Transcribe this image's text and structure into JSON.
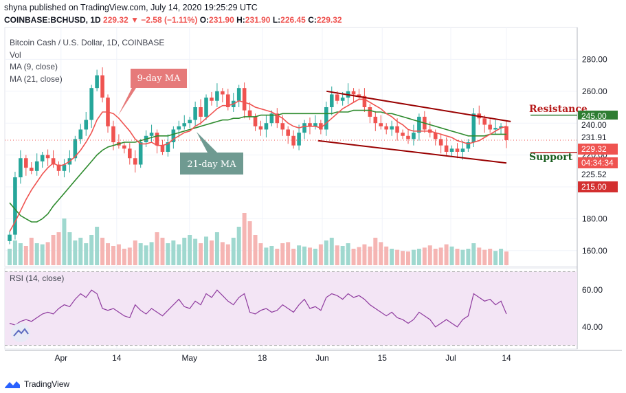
{
  "header": {
    "published": "shyna published on TradingView.com, July 14, 2020 19:25:29 UTC",
    "symbol": "COINBASE:BCHUSD, 1D",
    "last": "229.32",
    "change": "▼ −2.58 (−1.11%)",
    "open_label": "O:",
    "open": "231.90",
    "high_label": "H:",
    "high": "231.90",
    "low_label": "L:",
    "low": "226.45",
    "close_label": "C:",
    "close": "229.32"
  },
  "legend": {
    "title": "Bitcoin Cash / U.S. Dollar, 1D, COINBASE",
    "vol": "Vol",
    "ma9": "MA (9, close)",
    "ma21": "MA (21, close)"
  },
  "footer": {
    "brand": "TradingView",
    "logo_icon": "tradingview-logo-icon"
  },
  "colors": {
    "up": "#26a69a",
    "down": "#ef5350",
    "ma9": "#ef5350",
    "ma21": "#2e8b2e",
    "channel": "#990000",
    "rsi": "#8e3a9e"
  },
  "chart_data": [
    {
      "type": "candlestick",
      "title": "Bitcoin Cash / U.S. Dollar, 1D, COINBASE",
      "ylim": [
        150,
        300
      ],
      "yticks": [
        160,
        180,
        200,
        220,
        240,
        260,
        280
      ],
      "ytick_labels": [
        "160.00",
        "180.00",
        "200.00",
        "220.00",
        "240.00",
        "260.00",
        "280.00"
      ],
      "xticks": [
        {
          "x": "2020-04-01",
          "label": "Apr"
        },
        {
          "x": "2020-04-14",
          "label": "14"
        },
        {
          "x": "2020-05-01",
          "label": "May"
        },
        {
          "x": "2020-05-18",
          "label": "18"
        },
        {
          "x": "2020-06-01",
          "label": "Jun"
        },
        {
          "x": "2020-06-15",
          "label": "15"
        },
        {
          "x": "2020-07-01",
          "label": "Jul"
        },
        {
          "x": "2020-07-14",
          "label": "14"
        }
      ],
      "x_start": "2020-03-20",
      "x_end": "2020-07-14",
      "close": [
        170,
        206,
        218,
        212,
        210,
        216,
        220,
        218,
        214,
        210,
        214,
        218,
        230,
        236,
        242,
        262,
        270,
        256,
        238,
        228,
        226,
        224,
        218,
        214,
        228,
        232,
        234,
        226,
        222,
        228,
        236,
        238,
        240,
        242,
        250,
        244,
        256,
        254,
        260,
        258,
        250,
        254,
        262,
        248,
        244,
        238,
        236,
        240,
        246,
        240,
        236,
        232,
        226,
        234,
        240,
        238,
        240,
        236,
        250,
        258,
        254,
        256,
        260,
        258,
        257,
        250,
        244,
        240,
        238,
        236,
        238,
        234,
        232,
        230,
        234,
        244,
        236,
        234,
        230,
        226,
        222,
        224,
        222,
        224,
        228,
        246,
        243,
        239,
        236,
        237,
        238,
        229.32
      ],
      "ma9": [
        172,
        178,
        185,
        192,
        198,
        203,
        208,
        212,
        215,
        213,
        214,
        216,
        219,
        223,
        228,
        234,
        242,
        247,
        247,
        246,
        243,
        239,
        235,
        230,
        227,
        227,
        228,
        226,
        226,
        227,
        230,
        232,
        234,
        235,
        238,
        240,
        243,
        246,
        249,
        251,
        251,
        252,
        254,
        253,
        252,
        250,
        249,
        248,
        247,
        245,
        243,
        240,
        238,
        237,
        238,
        238,
        238,
        237,
        240,
        243,
        246,
        249,
        251,
        253,
        255,
        255,
        253,
        251,
        249,
        246,
        244,
        241,
        239,
        236,
        235,
        235,
        235,
        235,
        234,
        233,
        232,
        231,
        229,
        228,
        227,
        228,
        229,
        231,
        233,
        235,
        237,
        238
      ],
      "ma21": [
        190,
        186,
        182,
        180,
        178,
        178,
        180,
        183,
        188,
        192,
        196,
        200,
        204,
        208,
        212,
        216,
        220,
        223,
        225,
        226,
        227,
        228,
        228,
        228,
        229,
        230,
        231,
        232,
        232,
        232,
        233,
        234,
        235,
        236,
        237,
        238,
        239,
        240,
        241,
        242,
        242,
        243,
        243,
        244,
        244,
        244,
        245,
        245,
        245,
        245,
        246,
        246,
        246,
        246,
        246,
        246,
        246,
        246,
        246,
        246,
        247,
        247,
        247,
        248,
        248,
        248,
        248,
        247,
        247,
        246,
        246,
        245,
        244,
        243,
        242,
        241,
        240,
        239,
        238,
        237,
        236,
        235,
        234,
        233,
        232,
        232,
        232,
        232,
        233,
        233,
        233,
        233
      ],
      "vol_scale": [
        0.3,
        0.45,
        0.4,
        0.35,
        0.5,
        0.4,
        0.38,
        0.42,
        0.55,
        0.6,
        0.85,
        0.6,
        0.45,
        0.5,
        0.4,
        0.55,
        0.7,
        0.5,
        0.4,
        0.35,
        0.38,
        0.3,
        0.32,
        0.45,
        0.4,
        0.36,
        0.42,
        0.6,
        0.5,
        0.4,
        0.45,
        0.38,
        0.5,
        0.55,
        0.48,
        0.4,
        0.52,
        0.45,
        0.6,
        0.42,
        0.38,
        0.5,
        0.7,
        0.95,
        0.8,
        0.55,
        0.4,
        0.32,
        0.35,
        0.3,
        0.4,
        0.42,
        0.3,
        0.36,
        0.34,
        0.32,
        0.3,
        0.38,
        0.45,
        0.5,
        0.36,
        0.35,
        0.4,
        0.3,
        0.33,
        0.38,
        0.34,
        0.5,
        0.42,
        0.34,
        0.3,
        0.28,
        0.26,
        0.25,
        0.28,
        0.3,
        0.32,
        0.36,
        0.3,
        0.32,
        0.38,
        0.34,
        0.3,
        0.28,
        0.3,
        0.4,
        0.32,
        0.28,
        0.3,
        0.26,
        0.3,
        0.25
      ],
      "annotations": [
        {
          "text": "9-day MA"
        },
        {
          "text": "21-day MA"
        },
        {
          "text": "Resistance"
        },
        {
          "text": "Support"
        }
      ],
      "price_tags": [
        {
          "value": 245.0,
          "label": "245.00",
          "color": "#2e7d32"
        },
        {
          "value": 240.0,
          "label": "240.00",
          "color": "#ffffff"
        },
        {
          "value": 231.91,
          "label": "231.91",
          "color": "#ffffff"
        },
        {
          "value": 229.32,
          "label": "229.32",
          "color": "#ef5350"
        },
        {
          "value": 225.0,
          "label": "04:34:34",
          "color": "#ef5350"
        },
        {
          "value": 225.52,
          "label": "225.52",
          "color": "#ffffff"
        },
        {
          "value": 215.0,
          "label": "215.00",
          "color": "#d32f2f"
        }
      ],
      "channel": {
        "upper": [
          {
            "x": "2020-06-02",
            "y": 260
          },
          {
            "x": "2020-07-15",
            "y": 241
          }
        ],
        "lower": [
          {
            "x": "2020-05-31",
            "y": 229
          },
          {
            "x": "2020-07-14",
            "y": 215
          }
        ]
      },
      "resistance_line": 245.0,
      "support_line": 221.5
    },
    {
      "type": "line",
      "title": "RSI (14, close)",
      "ylim": [
        28,
        72
      ],
      "yticks": [
        40,
        60
      ],
      "ytick_labels": [
        "40.00",
        "60.00"
      ],
      "bands": [
        30,
        70
      ],
      "values": [
        42,
        41,
        43,
        44,
        43,
        45,
        47,
        48,
        47,
        50,
        52,
        51,
        55,
        58,
        56,
        60,
        58,
        50,
        49,
        50,
        48,
        46,
        45,
        52,
        49,
        47,
        50,
        48,
        46,
        49,
        52,
        55,
        51,
        50,
        54,
        52,
        58,
        56,
        60,
        57,
        54,
        52,
        56,
        58,
        48,
        47,
        49,
        50,
        48,
        49,
        52,
        50,
        48,
        52,
        55,
        50,
        51,
        49,
        56,
        58,
        57,
        55,
        58,
        56,
        57,
        55,
        52,
        50,
        48,
        46,
        48,
        45,
        44,
        42,
        44,
        48,
        46,
        44,
        40,
        42,
        44,
        42,
        40,
        44,
        46,
        58,
        56,
        54,
        55,
        52,
        54,
        47
      ]
    }
  ]
}
